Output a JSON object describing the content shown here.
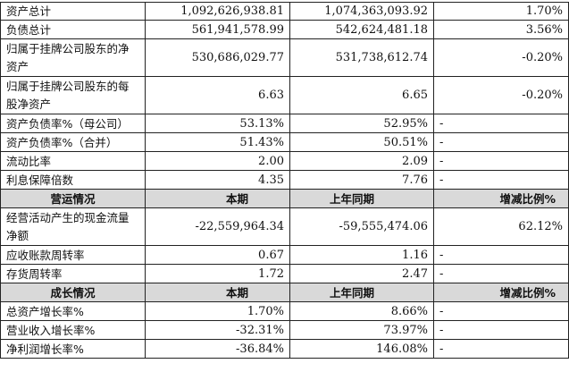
{
  "rows": [
    {
      "label": "资产总计",
      "current": "1,092,626,938.81",
      "previous": "1,074,363,093.92",
      "change": "1.70%"
    },
    {
      "label": "负债总计",
      "current": "561,941,578.99",
      "previous": "542,624,481.18",
      "change": "3.56%"
    },
    {
      "label": "归属于挂牌公司股东的净资产",
      "current": "530,686,029.77",
      "previous": "531,738,612.74",
      "change": "-0.20%"
    },
    {
      "label": "归属于挂牌公司股东的每股净资产",
      "current": "6.63",
      "previous": "6.65",
      "change": "-0.20%"
    },
    {
      "label": "资产负债率%（母公司）",
      "current": "53.13%",
      "previous": "52.95%",
      "change": "-"
    },
    {
      "label": "资产负债率%（合并）",
      "current": "51.43%",
      "previous": "50.51%",
      "change": "-"
    },
    {
      "label": "流动比率",
      "current": "2.00",
      "previous": "2.09",
      "change": "-"
    },
    {
      "label": "利息保障倍数",
      "current": "4.35",
      "previous": "7.76",
      "change": "-"
    }
  ],
  "operations": {
    "header": {
      "title": "营运情况",
      "current": "本期",
      "previous": "上年同期",
      "change": "增减比例%"
    },
    "rows": [
      {
        "label": "经营活动产生的现金流量净额",
        "current": "-22,559,964.34",
        "previous": "-59,555,474.06",
        "change": "62.12%"
      },
      {
        "label": "应收账款周转率",
        "current": "0.67",
        "previous": "1.16",
        "change": "-"
      },
      {
        "label": "存货周转率",
        "current": "1.72",
        "previous": "2.47",
        "change": "-"
      }
    ]
  },
  "growth": {
    "header": {
      "title": "成长情况",
      "current": "本期",
      "previous": "上年同期",
      "change": "增减比例%"
    },
    "rows": [
      {
        "label": "总资产增长率%",
        "current": "1.70%",
        "previous": "8.66%",
        "change": "-"
      },
      {
        "label": "营业收入增长率%",
        "current": "-32.31%",
        "previous": "73.97%",
        "change": "-"
      },
      {
        "label": "净利润增长率%",
        "current": "-36.84%",
        "previous": "146.08%",
        "change": "-"
      }
    ]
  }
}
